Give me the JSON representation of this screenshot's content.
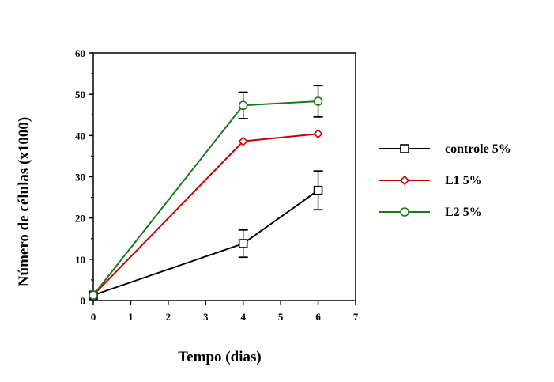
{
  "chart_data": {
    "type": "line",
    "title": "",
    "xlabel": "Tempo (dias)",
    "ylabel": "Número de células (x1000)",
    "xlim": [
      0,
      7
    ],
    "ylim": [
      0,
      60
    ],
    "xticks": [
      0,
      1,
      2,
      3,
      4,
      5,
      6,
      7
    ],
    "yticks": [
      0,
      10,
      20,
      30,
      40,
      50,
      60
    ],
    "grid": false,
    "legend_position": "right",
    "series": [
      {
        "name": "controle 5%",
        "color": "#000000",
        "marker": "square",
        "x": [
          0,
          4,
          6
        ],
        "y": [
          1.3,
          13.8,
          26.7
        ],
        "error": [
          null,
          3.3,
          4.7
        ]
      },
      {
        "name": "L1 5%",
        "color": "#cc0000",
        "marker": "diamond",
        "x": [
          0,
          4,
          6
        ],
        "y": [
          1.3,
          38.6,
          40.4
        ],
        "error": [
          null,
          null,
          null
        ]
      },
      {
        "name": "L2 5%",
        "color": "#1a7a1a",
        "marker": "circle",
        "x": [
          0,
          4,
          6
        ],
        "y": [
          1.3,
          47.3,
          48.3
        ],
        "error": [
          null,
          3.2,
          3.8
        ]
      }
    ]
  }
}
